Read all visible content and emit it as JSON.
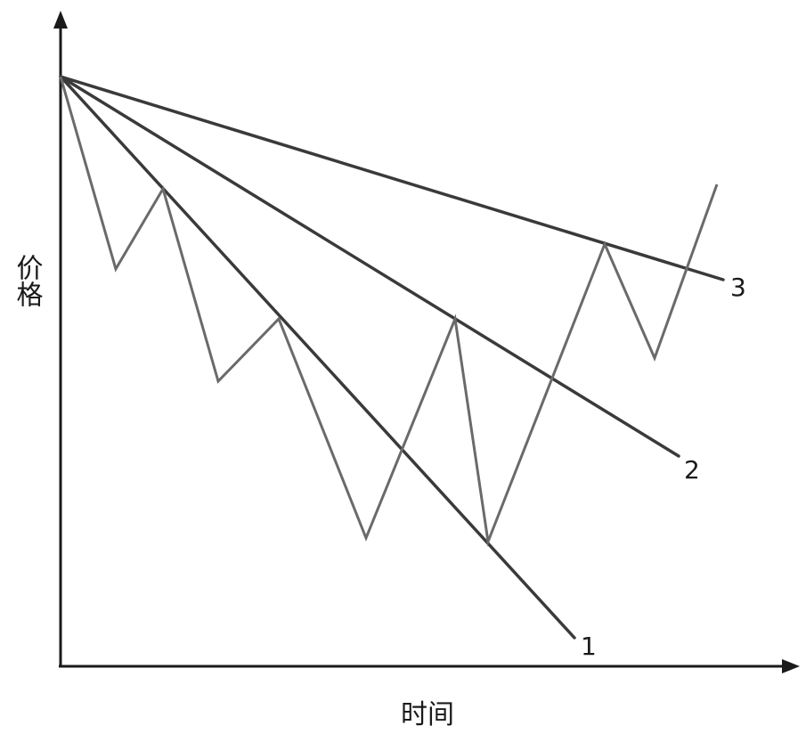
{
  "diagram": {
    "y_axis_label": "价格",
    "x_axis_label": "时间",
    "trend_lines": [
      {
        "id": "1",
        "label": "1"
      },
      {
        "id": "2",
        "label": "2"
      },
      {
        "id": "3",
        "label": "3"
      }
    ]
  }
}
